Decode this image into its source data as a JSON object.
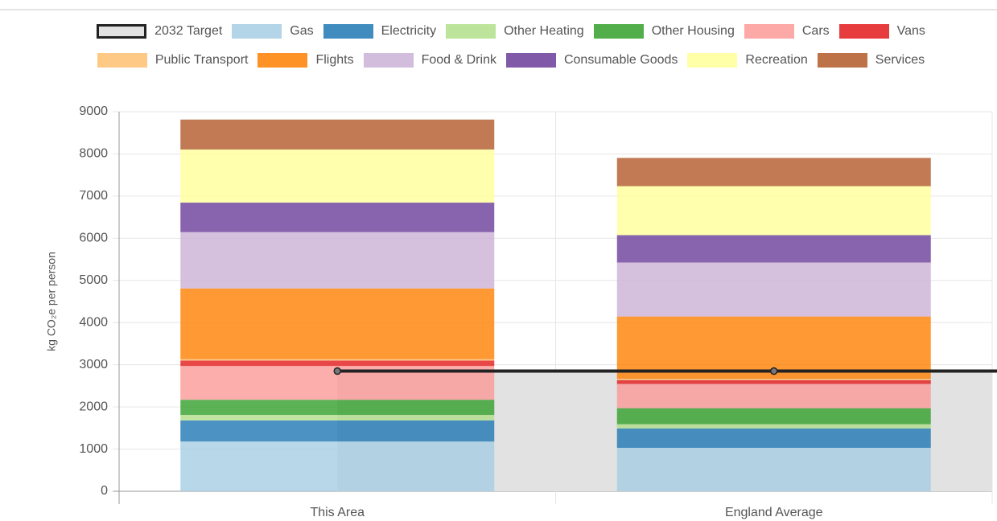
{
  "chart_data": {
    "type": "bar",
    "stacked": true,
    "y_label": "kg CO₂e per person",
    "categories": [
      "This Area",
      "England Average"
    ],
    "ylim": [
      0,
      9000
    ],
    "yticks": [
      0,
      1000,
      2000,
      3000,
      4000,
      5000,
      6000,
      7000,
      8000,
      9000
    ],
    "grid": true,
    "series": [
      {
        "name": "2032 Target",
        "type": "line",
        "color": "#222222",
        "fill": "#e2e2e2",
        "values": [
          2850,
          2850
        ]
      },
      {
        "name": "Gas",
        "color": "#a6cee3",
        "values": [
          1180,
          1030
        ]
      },
      {
        "name": "Electricity",
        "color": "#1f78b4",
        "values": [
          500,
          460
        ]
      },
      {
        "name": "Other Heating",
        "color": "#b2df8a",
        "values": [
          130,
          100
        ]
      },
      {
        "name": "Other Housing",
        "color": "#33a02c",
        "values": [
          360,
          380
        ]
      },
      {
        "name": "Cars",
        "color": "#fb9a99",
        "values": [
          800,
          575
        ]
      },
      {
        "name": "Vans",
        "color": "#e31a1c",
        "values": [
          130,
          90
        ]
      },
      {
        "name": "Public Transport",
        "color": "#fdbf6f",
        "values": [
          30,
          30
        ]
      },
      {
        "name": "Flights",
        "color": "#ff7f00",
        "values": [
          1680,
          1480
        ]
      },
      {
        "name": "Food & Drink",
        "color": "#cab2d6",
        "values": [
          1335,
          1280
        ]
      },
      {
        "name": "Consumable Goods",
        "color": "#6a3d9a",
        "values": [
          700,
          650
        ]
      },
      {
        "name": "Recreation",
        "color": "#ffff99",
        "values": [
          1260,
          1160
        ]
      },
      {
        "name": "Services",
        "color": "#b15928",
        "values": [
          710,
          670
        ]
      }
    ]
  }
}
